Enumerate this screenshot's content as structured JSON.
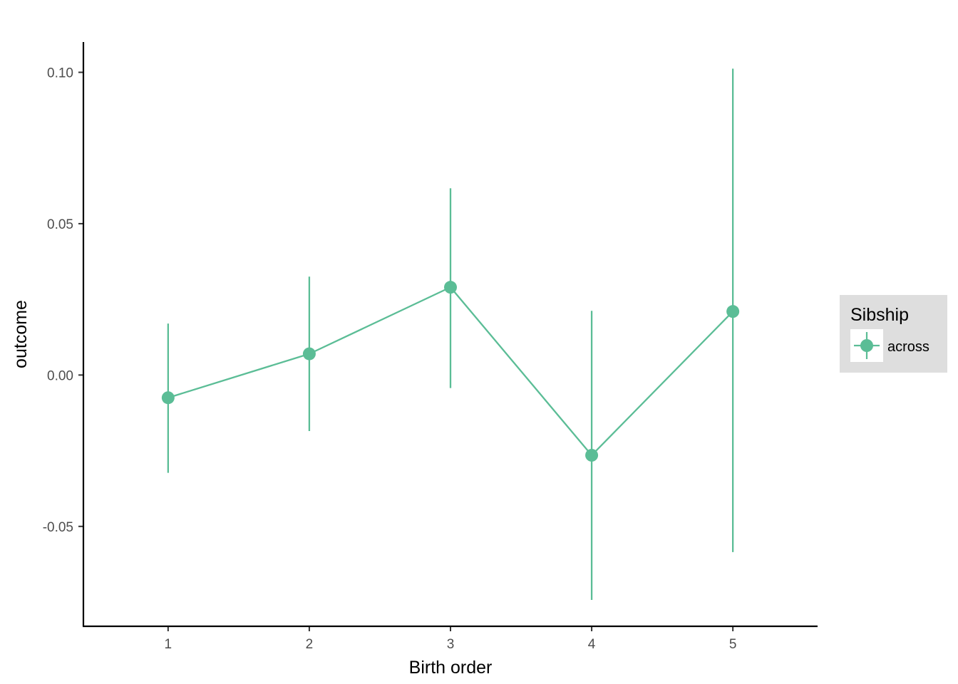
{
  "chart_data": {
    "type": "line",
    "xlabel": "Birth order",
    "ylabel": "outcome",
    "x": [
      1,
      2,
      3,
      4,
      5
    ],
    "x_tick_labels": [
      "1",
      "2",
      "3",
      "4",
      "5"
    ],
    "y_ticks": [
      -0.05,
      0.0,
      0.05,
      0.1
    ],
    "y_tick_labels": [
      "-0.05",
      "0.00",
      "0.05",
      "0.10"
    ],
    "xlim": [
      0.4,
      5.6
    ],
    "ylim": [
      -0.083,
      0.11
    ],
    "grid": false,
    "legend": {
      "title": "Sibship",
      "position": "right"
    },
    "series": [
      {
        "name": "across",
        "color": "#5bbd96",
        "values": [
          -0.0075,
          0.007,
          0.029,
          -0.0265,
          0.021
        ],
        "lower": [
          -0.0323,
          -0.0185,
          -0.0043,
          -0.0743,
          -0.0585
        ],
        "upper": [
          0.017,
          0.0325,
          0.0617,
          0.0212,
          0.1012
        ]
      }
    ]
  }
}
